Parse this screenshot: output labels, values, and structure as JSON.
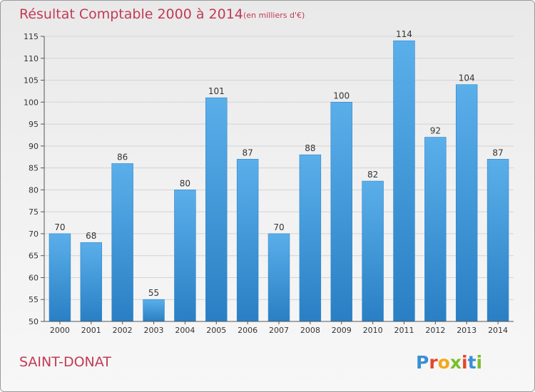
{
  "chart_data": {
    "type": "bar",
    "title": "Résultat Comptable 2000 à 2014",
    "subtitle": "(en milliers d'€)",
    "xlabel": "",
    "ylabel": "",
    "categories": [
      "2000",
      "2001",
      "2002",
      "2003",
      "2004",
      "2005",
      "2006",
      "2007",
      "2008",
      "2009",
      "2010",
      "2011",
      "2012",
      "2013",
      "2014"
    ],
    "values": [
      70,
      68,
      86,
      55,
      80,
      101,
      87,
      70,
      88,
      100,
      82,
      114,
      92,
      104,
      87
    ],
    "value_labels": [
      "70",
      "68",
      "86",
      "55",
      "80",
      "101",
      "87",
      "70",
      "88",
      "100",
      "82",
      "114",
      "92",
      "104",
      "87"
    ],
    "ylim": [
      50,
      115
    ],
    "yticks": [
      50,
      55,
      60,
      65,
      70,
      75,
      80,
      85,
      90,
      95,
      100,
      105,
      110,
      115
    ],
    "ytick_labels": [
      "50",
      "55",
      "60",
      "65",
      "70",
      "75",
      "80",
      "85",
      "90",
      "95",
      "100",
      "105",
      "110",
      "115"
    ],
    "grid": true,
    "legend": "none",
    "bar_color": "#3d9be0"
  },
  "footer": {
    "commune": "SAINT-DONAT",
    "logo_letters": [
      {
        "char": "P",
        "color": "#3a8fd6"
      },
      {
        "char": "r",
        "color": "#e8442c"
      },
      {
        "char": "o",
        "color": "#f2a81d"
      },
      {
        "char": "x",
        "color": "#7abf2a"
      },
      {
        "char": "i",
        "color": "#e8442c"
      },
      {
        "char": "t",
        "color": "#3a8fd6"
      },
      {
        "char": "i",
        "color": "#7abf2a"
      }
    ]
  }
}
